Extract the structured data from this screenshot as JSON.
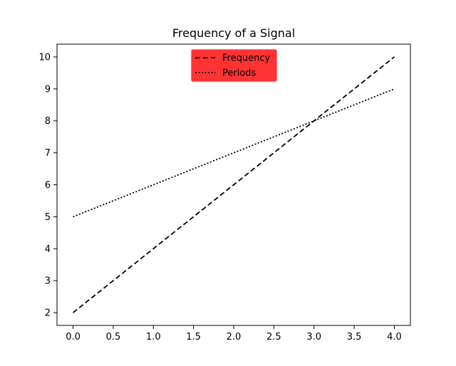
{
  "chart_data": {
    "type": "line",
    "title": "Frequency of a Signal",
    "xlabel": "",
    "ylabel": "",
    "xlim": [
      -0.2,
      4.2
    ],
    "ylim": [
      1.6,
      10.4
    ],
    "xticks": [
      "0.0",
      "0.5",
      "1.0",
      "1.5",
      "2.0",
      "2.5",
      "3.0",
      "3.5",
      "4.0"
    ],
    "yticks": [
      "2",
      "3",
      "4",
      "5",
      "6",
      "7",
      "8",
      "9",
      "10"
    ],
    "grid": false,
    "legend": {
      "placement": "top-center",
      "background": "#ff3333"
    },
    "series": [
      {
        "name": "Frequency",
        "style": "dashed",
        "color": "#000000",
        "x": [
          0,
          1,
          2,
          3,
          4
        ],
        "y": [
          2,
          4,
          6,
          8,
          10
        ]
      },
      {
        "name": "Periods",
        "style": "dotted",
        "color": "#000000",
        "x": [
          0,
          1,
          2,
          3,
          4
        ],
        "y": [
          5,
          6,
          7,
          8,
          9
        ]
      }
    ]
  }
}
